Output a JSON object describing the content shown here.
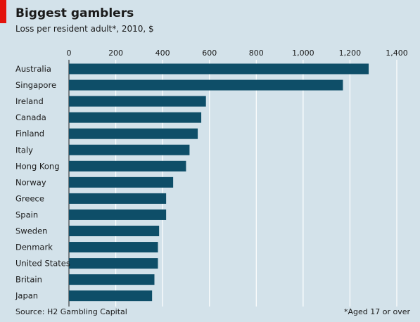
{
  "chart_data": {
    "type": "bar",
    "orientation": "horizontal",
    "title": "Biggest gamblers",
    "subtitle": "Loss per resident adult*, 2010, $",
    "categories": [
      "Australia",
      "Singapore",
      "Ireland",
      "Canada",
      "Finland",
      "Italy",
      "Hong Kong",
      "Norway",
      "Greece",
      "Spain",
      "Sweden",
      "Denmark",
      "United States",
      "Britain",
      "Japan"
    ],
    "values": [
      1280,
      1170,
      585,
      565,
      550,
      515,
      500,
      445,
      415,
      415,
      385,
      380,
      380,
      365,
      355
    ],
    "xlim": [
      0,
      1400
    ],
    "ticks": [
      0,
      200,
      400,
      600,
      800,
      1000,
      1200,
      1400
    ],
    "tick_labels": [
      "0",
      "200",
      "400",
      "600",
      "800",
      "1,000",
      "1,200",
      "1,400"
    ],
    "grid": true,
    "source": "Source: H2 Gambling Capital",
    "footnote": "*Aged 17 or over",
    "colors": {
      "background": "#d3e2ea",
      "bar": "#0e4e68",
      "accent": "#e3120b",
      "grid": "#ffffff",
      "text": "#1a1a1a"
    }
  }
}
